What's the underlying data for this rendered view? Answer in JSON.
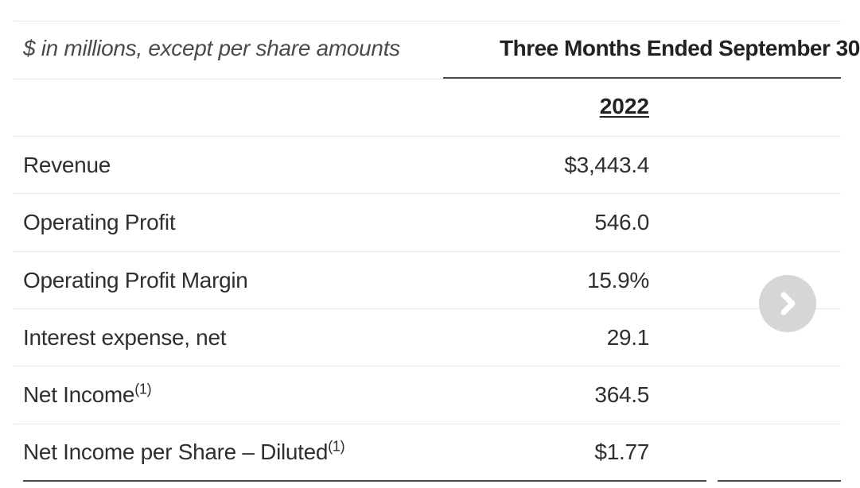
{
  "table": {
    "caption": "$ in millions, except per share amounts",
    "period_header": "Three Months Ended September 30",
    "year": "2022",
    "rows": [
      {
        "label": "Revenue",
        "sup": "",
        "value": "$3,443.4"
      },
      {
        "label": "Operating Profit",
        "sup": "",
        "value": "546.0"
      },
      {
        "label": "Operating Profit Margin",
        "sup": "",
        "value": "15.9%"
      },
      {
        "label": "Interest expense, net",
        "sup": "",
        "value": "29.1"
      },
      {
        "label": "Net Income",
        "sup": "(1)",
        "value": "364.5"
      },
      {
        "label": "Net Income per Share – Diluted",
        "sup": "(1)",
        "value": "$1.77"
      }
    ]
  },
  "controls": {
    "next_icon": "chevron-right-icon",
    "next_button_color": "#d6d6d6"
  }
}
